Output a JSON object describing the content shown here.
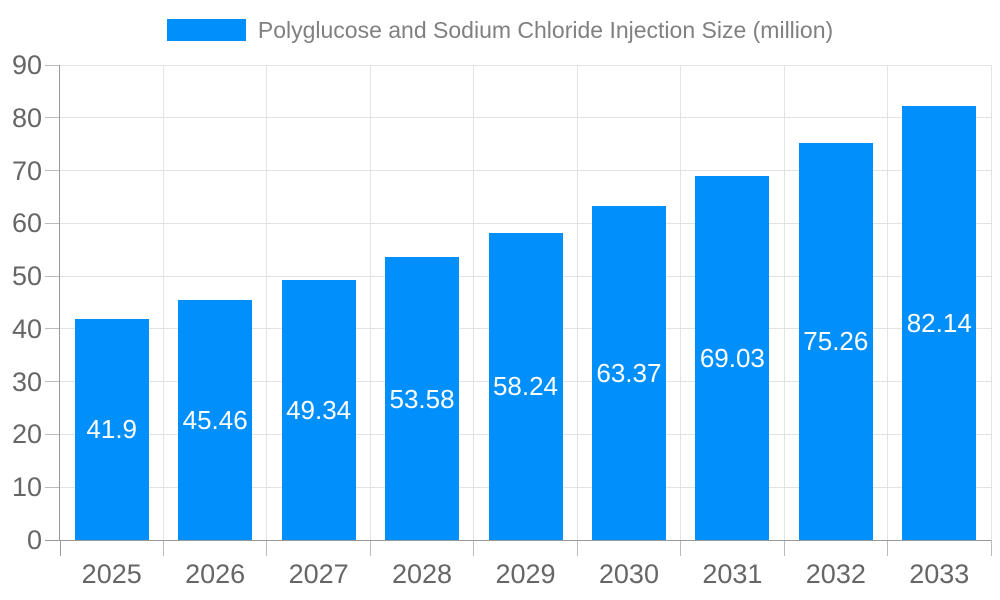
{
  "chart_data": {
    "type": "bar",
    "title": "Polyglucose and Sodium Chloride Injection Size (million)",
    "legend": {
      "position": "top",
      "label": "Polyglucose and Sodium Chloride Injection Size (million)"
    },
    "categories": [
      "2025",
      "2026",
      "2027",
      "2028",
      "2029",
      "2030",
      "2031",
      "2032",
      "2033"
    ],
    "series": [
      {
        "name": "Polyglucose and Sodium Chloride Injection Size (million)",
        "values": [
          41.9,
          45.46,
          49.34,
          53.58,
          58.24,
          63.37,
          69.03,
          75.26,
          82.14
        ]
      }
    ],
    "value_labels": [
      "41.9",
      "45.46",
      "49.34",
      "53.58",
      "58.24",
      "63.37",
      "69.03",
      "75.26",
      "82.14"
    ],
    "xlabel": "",
    "ylabel": "",
    "ylim": [
      0,
      90
    ],
    "ytick_interval": 10,
    "ytick_labels": [
      "0",
      "10",
      "20",
      "30",
      "40",
      "50",
      "60",
      "70",
      "80",
      "90"
    ],
    "grid": {
      "horizontal": true,
      "vertical": true
    },
    "legend_on": true,
    "colors": {
      "bar": "#008FFB",
      "value_label": "#ffffff",
      "axis_line": "#999999",
      "tick": "#bbbbbb",
      "gridline": "#e3e3e3",
      "axis_text": "#666666",
      "title_text": "#808080"
    }
  }
}
